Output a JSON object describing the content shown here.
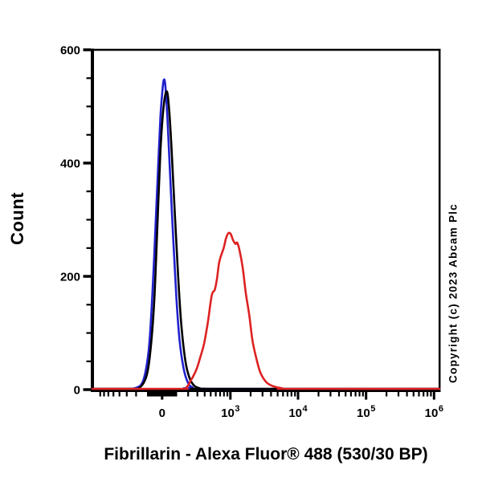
{
  "copyright": "Copyright (c) 2023 Abcam Plc",
  "chart_data": {
    "type": "line",
    "subtype": "flow-cytometry-histogram",
    "title": "",
    "xlabel": "Fibrillarin - Alexa Fluor® 488 (530/30 BP)",
    "ylabel": "Count",
    "background": "#ffffff",
    "axis_color": "#000000",
    "grid": false,
    "legend": "none",
    "x_axis": {
      "scale": "biexponential-asinh",
      "asinh_cofactor": 200,
      "range": [
        -1050,
        1200000
      ],
      "major_ticks": [
        {
          "value": 0,
          "label": "0"
        },
        {
          "value": 1000,
          "base": "10",
          "exp": "3"
        },
        {
          "value": 10000,
          "base": "10",
          "exp": "4"
        },
        {
          "value": 100000,
          "base": "10",
          "exp": "5"
        },
        {
          "value": 1000000,
          "base": "10",
          "exp": "6"
        }
      ],
      "minor_ticks": [
        -800,
        -700,
        -600,
        -500,
        -400,
        -300,
        -200,
        -100,
        -90,
        -80,
        -70,
        -60,
        -50,
        -40,
        -30,
        -20,
        -10,
        10,
        20,
        30,
        40,
        50,
        60,
        70,
        80,
        90,
        100,
        200,
        300,
        400,
        500,
        600,
        700,
        800,
        900,
        2000,
        3000,
        4000,
        5000,
        6000,
        7000,
        8000,
        9000,
        20000,
        30000,
        40000,
        50000,
        60000,
        70000,
        80000,
        90000,
        200000,
        300000,
        400000,
        500000,
        600000,
        700000,
        800000,
        900000
      ]
    },
    "y_axis": {
      "scale": "linear",
      "range": [
        0,
        600
      ],
      "major_ticks": [
        0,
        200,
        400,
        600
      ],
      "minor_ticks": [
        50,
        100,
        150,
        250,
        300,
        350,
        450,
        500,
        550
      ]
    },
    "series": [
      {
        "name": "blue-curve",
        "color": "#2121cd",
        "peak": {
          "x": 11,
          "count": 545
        },
        "points": [
          [
            -1050,
            0
          ],
          [
            -300,
            0
          ],
          [
            -196,
            2
          ],
          [
            -146,
            10
          ],
          [
            -114,
            35
          ],
          [
            -89,
            80
          ],
          [
            -66,
            170
          ],
          [
            -44,
            290
          ],
          [
            -27,
            390
          ],
          [
            -11,
            480
          ],
          [
            0,
            520
          ],
          [
            11,
            545
          ],
          [
            22,
            535
          ],
          [
            38,
            470
          ],
          [
            55,
            380
          ],
          [
            78,
            260
          ],
          [
            101,
            160
          ],
          [
            126,
            85
          ],
          [
            160,
            35
          ],
          [
            196,
            12
          ],
          [
            244,
            3
          ],
          [
            400,
            0
          ],
          [
            1200000,
            0
          ]
        ]
      },
      {
        "name": "black-curve",
        "color": "#000000",
        "peak": {
          "x": 33,
          "count": 525
        },
        "points": [
          [
            -1050,
            0
          ],
          [
            -250,
            0
          ],
          [
            -167,
            2
          ],
          [
            -114,
            20
          ],
          [
            -84,
            60
          ],
          [
            -55,
            150
          ],
          [
            -33,
            280
          ],
          [
            -11,
            420
          ],
          [
            11,
            500
          ],
          [
            33,
            525
          ],
          [
            49,
            490
          ],
          [
            66,
            420
          ],
          [
            89,
            310
          ],
          [
            114,
            200
          ],
          [
            139,
            115
          ],
          [
            174,
            50
          ],
          [
            212,
            20
          ],
          [
            261,
            6
          ],
          [
            332,
            1
          ],
          [
            500,
            0
          ],
          [
            1200000,
            0
          ]
        ]
      },
      {
        "name": "red-curve",
        "color": "#dd2222",
        "peak": {
          "x": 936,
          "count": 275
        },
        "points": [
          [
            -1050,
            0
          ],
          [
            120,
            0
          ],
          [
            181,
            2
          ],
          [
            228,
            15
          ],
          [
            289,
            34
          ],
          [
            347,
            60
          ],
          [
            391,
            80
          ],
          [
            451,
            118
          ],
          [
            519,
            165
          ],
          [
            580,
            175
          ],
          [
            628,
            195
          ],
          [
            682,
            225
          ],
          [
            794,
            249
          ],
          [
            862,
            266
          ],
          [
            936,
            275
          ],
          [
            1016,
            273
          ],
          [
            1104,
            262
          ],
          [
            1196,
            256
          ],
          [
            1262,
            258
          ],
          [
            1368,
            245
          ],
          [
            1524,
            215
          ],
          [
            1700,
            169
          ],
          [
            1912,
            130
          ],
          [
            2134,
            85
          ],
          [
            2448,
            52
          ],
          [
            2804,
            28
          ],
          [
            3390,
            12
          ],
          [
            4212,
            5
          ],
          [
            5820,
            1
          ],
          [
            8000,
            0
          ],
          [
            1200000,
            0
          ]
        ]
      }
    ]
  }
}
